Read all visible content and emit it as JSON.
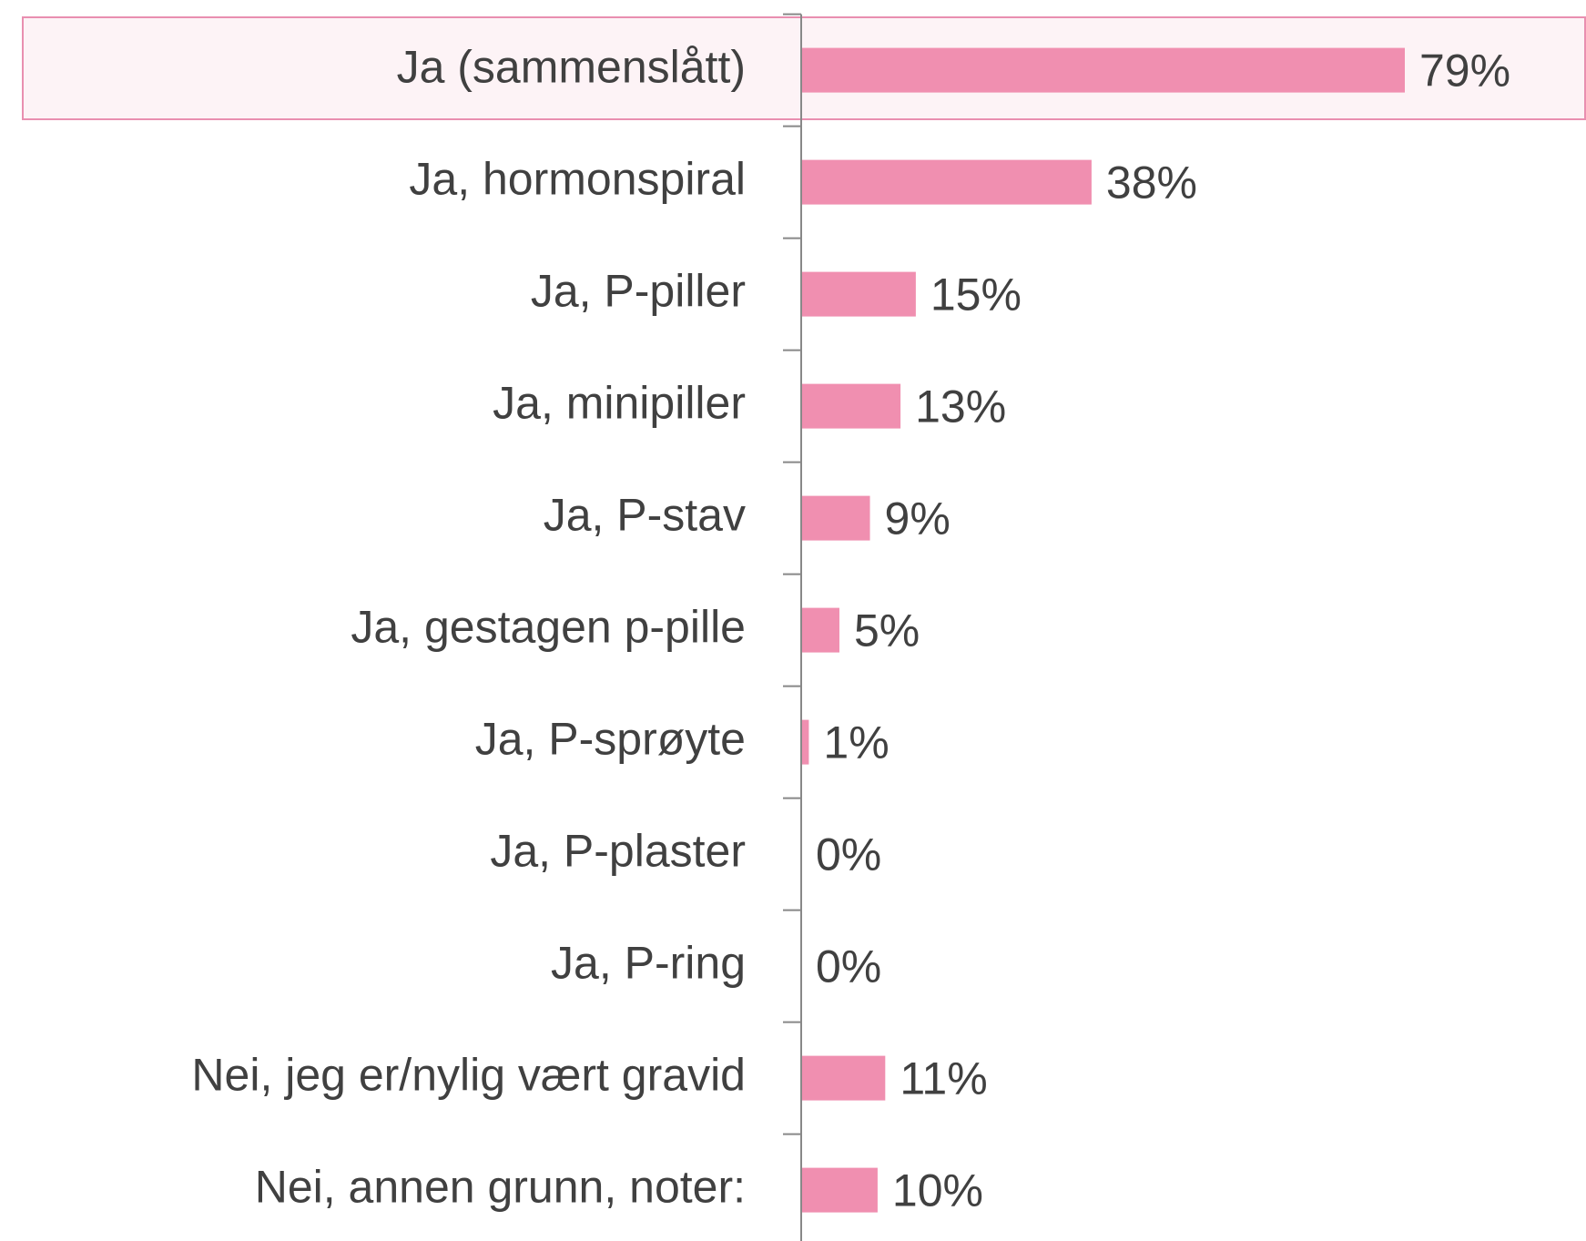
{
  "chart_data": {
    "type": "hbar",
    "categories": [
      "Ja (sammenslått)",
      "Ja, hormonspiral",
      "Ja, P-piller",
      "Ja, minipiller",
      "Ja, P-stav",
      "Ja, gestagen p-pille",
      "Ja, P-sprøyte",
      "Ja, P-plaster",
      "Ja, P-ring",
      "Nei, jeg er/nylig vært gravid",
      "Nei, annen grunn, noter:"
    ],
    "values": [
      79,
      38,
      15,
      13,
      9,
      5,
      1,
      0,
      0,
      11,
      10
    ],
    "value_labels": [
      "79%",
      "38%",
      "15%",
      "13%",
      "9%",
      "5%",
      "1%",
      "0%",
      "0%",
      "11%",
      "10%"
    ],
    "color": "#f08fb0"
  }
}
